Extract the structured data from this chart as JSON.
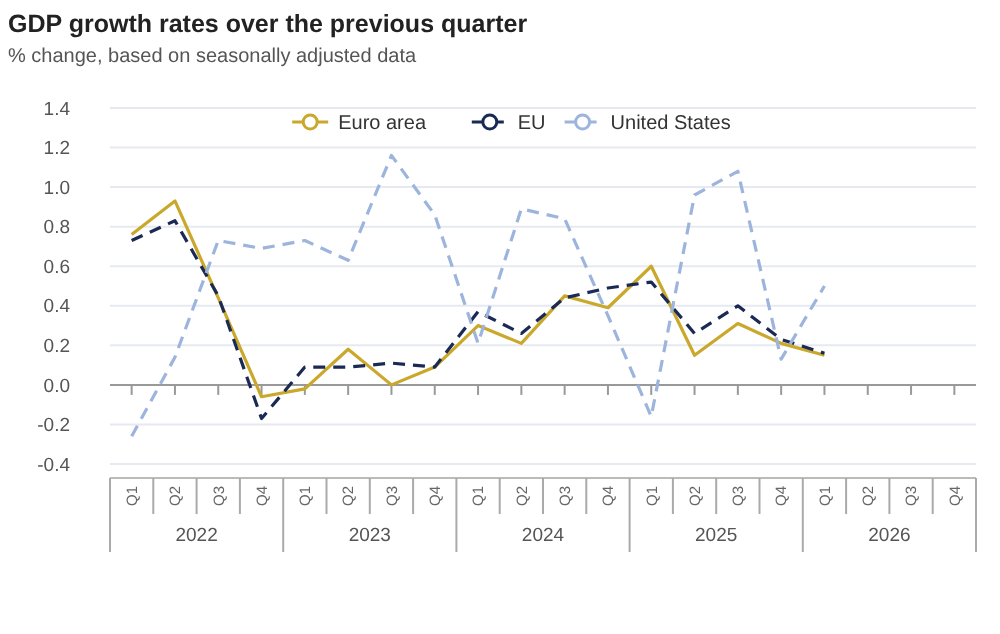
{
  "chart_data": {
    "type": "line",
    "title": "GDP growth rates over the previous quarter",
    "subtitle": "% change, based on seasonally adjusted data",
    "categories": [
      "Q1",
      "Q2",
      "Q3",
      "Q4",
      "Q1",
      "Q2",
      "Q3",
      "Q4",
      "Q1",
      "Q2",
      "Q3",
      "Q4",
      "Q1",
      "Q2",
      "Q3",
      "Q4",
      "Q1",
      "Q2",
      "Q3",
      "Q4"
    ],
    "annotations": [
      "2022",
      "2023",
      "2024",
      "2025",
      "2026"
    ],
    "series": [
      {
        "name": "Euro area",
        "color": "#c9a82c",
        "line_style": "solid",
        "values": [
          0.76,
          0.93,
          0.44,
          -0.06,
          -0.02,
          0.18,
          0.0,
          0.09,
          0.3,
          0.21,
          0.45,
          0.39,
          0.6,
          0.15,
          0.31,
          0.21,
          0.15,
          null,
          null,
          null
        ]
      },
      {
        "name": "EU",
        "color": "#1b2a55",
        "line_style": "dashed",
        "values": [
          0.73,
          0.83,
          0.45,
          -0.17,
          0.09,
          0.09,
          0.11,
          0.09,
          0.37,
          0.26,
          0.44,
          0.49,
          0.52,
          0.26,
          0.4,
          0.23,
          0.16,
          null,
          null,
          null
        ]
      },
      {
        "name": "United States",
        "color": "#9db4dc",
        "line_style": "dashed",
        "values": [
          -0.26,
          0.14,
          0.73,
          0.69,
          0.73,
          0.63,
          1.16,
          0.86,
          0.21,
          0.89,
          0.84,
          0.35,
          -0.16,
          0.96,
          1.08,
          0.13,
          0.5,
          null,
          null,
          null
        ]
      }
    ],
    "ylim": [
      -0.4,
      1.4
    ],
    "yticks": [
      {
        "value": -0.4,
        "label": "-0.4"
      },
      {
        "value": -0.2,
        "label": "-0.2"
      },
      {
        "value": 0,
        "label": "0.0"
      },
      {
        "value": 0.2,
        "label": "0.2"
      },
      {
        "value": 0.4,
        "label": "0.4"
      },
      {
        "value": 0.6,
        "label": "0.6"
      },
      {
        "value": 0.8,
        "label": "0.8"
      },
      {
        "value": 1,
        "label": "1.0"
      },
      {
        "value": 1.2,
        "label": "1.2"
      },
      {
        "value": 1.4,
        "label": "1.4"
      }
    ],
    "grid": "y",
    "legend": "top",
    "marker": "none"
  }
}
